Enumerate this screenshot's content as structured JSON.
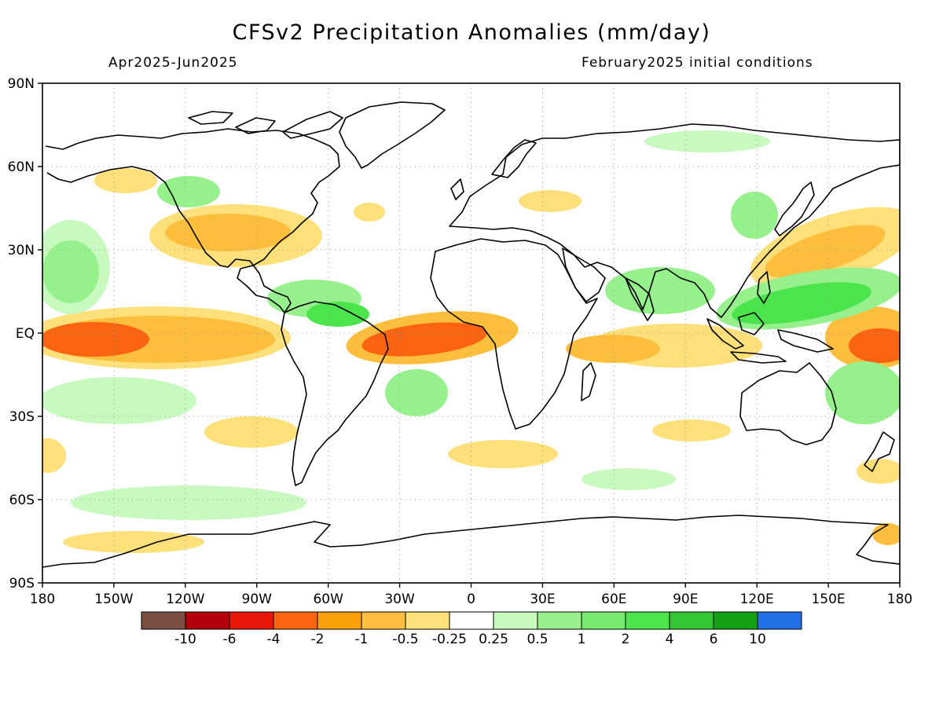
{
  "title": "CFSv2 Precipitation Anomalies (mm/day)",
  "period": "Apr2025-Jun2025",
  "initial_conditions": "February2025 initial conditions",
  "lat_labels": [
    "90N",
    "60N",
    "30N",
    "EQ",
    "30S",
    "60S",
    "90S"
  ],
  "lon_labels": [
    "180",
    "150W",
    "120W",
    "90W",
    "60W",
    "30W",
    "0",
    "30E",
    "60E",
    "90E",
    "120E",
    "150E",
    "180"
  ],
  "colorbar": {
    "colors": [
      "#7a4e42",
      "#b5000b",
      "#e8170a",
      "#fa6410",
      "#fca00a",
      "#fcbe3c",
      "#fde07a",
      "#ffffff",
      "#c8fac0",
      "#96f08c",
      "#78e86e",
      "#4ce44c",
      "#34c634",
      "#14a014",
      "#2270e8"
    ],
    "labels": [
      "-10",
      "-6",
      "-4",
      "-2",
      "-1",
      "-0.5",
      "-0.25",
      "0.25",
      "0.5",
      "1",
      "2",
      "4",
      "6",
      "10"
    ]
  },
  "palette": {
    "dry_light": "#fde07a",
    "dry_mid": "#fcbe3c",
    "dry_strong": "#fca00a",
    "dry_very": "#fa6410",
    "wet_light": "#c8fac0",
    "wet_mid": "#96f08c",
    "wet_strong": "#78e86e",
    "wet_very": "#4ce44c"
  }
}
